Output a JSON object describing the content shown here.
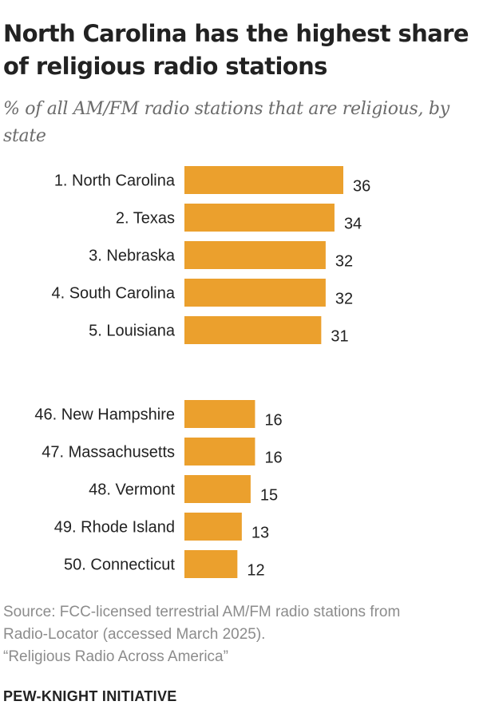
{
  "title": "North Carolina has the highest share of religious radio stations",
  "subtitle": "% of all AM/FM radio stations that are religious, by state",
  "notes": [
    "Source: FCC-licensed terrestrial AM/FM radio stations from",
    "Radio-Locator (accessed March 2025).",
    "“Religious Radio Across America”"
  ],
  "brand": "PEW-KNIGHT INITIATIVE",
  "colors": {
    "bar": "#EBA02D",
    "text": "#222222",
    "note": "#8C8C8C"
  },
  "chart_data": {
    "type": "bar",
    "orientation": "horizontal",
    "groups": [
      {
        "categories": [
          "1. North Carolina",
          "2. Texas",
          "3. Nebraska",
          "4. South Carolina",
          "5. Louisiana"
        ],
        "values": [
          36,
          34,
          32,
          32,
          31
        ]
      },
      {
        "categories": [
          "46. New Hampshire",
          "47. Massachusetts",
          "48. Vermont",
          "49. Rhode Island",
          "50. Connecticut"
        ],
        "values": [
          16,
          16,
          15,
          13,
          12
        ]
      }
    ],
    "xlim": [
      0,
      36
    ],
    "grid": false,
    "legend": "none"
  }
}
